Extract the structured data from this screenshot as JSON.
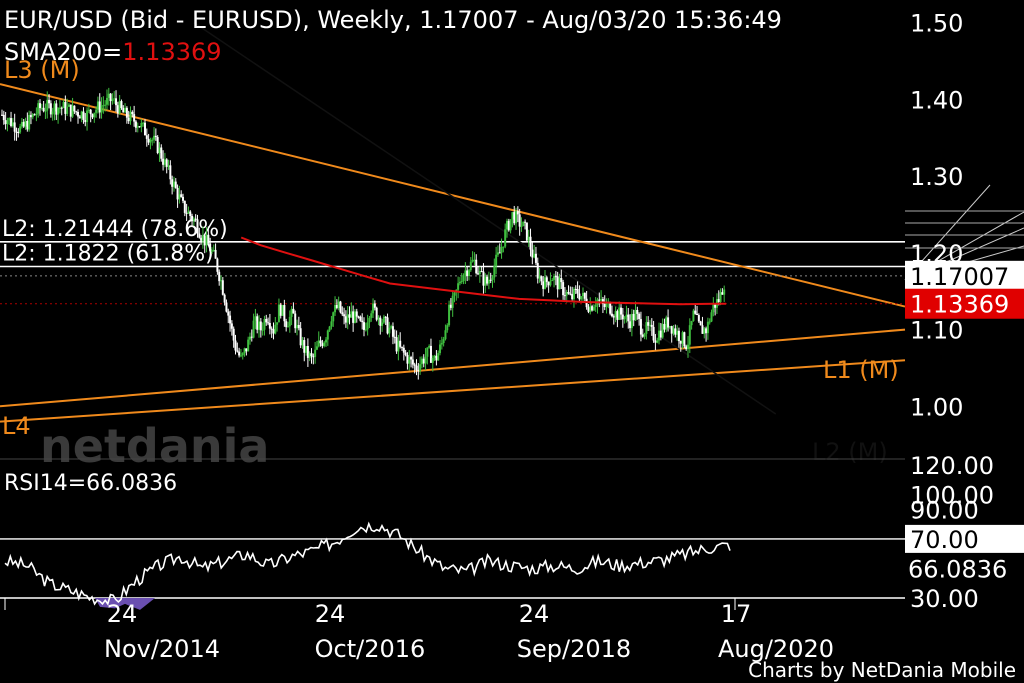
{
  "header": {
    "title": "EUR/USD (Bid - EURUSD),  Weekly, 1.17007 - Aug/03/20 15:36:49",
    "sma_label": "SMA200=",
    "sma_value": "1.13369"
  },
  "watermark": "netdania",
  "footer": "Charts by NetDania Mobile",
  "colors": {
    "background": "#000000",
    "candle_up": "#3fbf3f",
    "candle_down": "#ffffff",
    "sma": "#e01010",
    "trendline": "#f08a1c",
    "fib": "#ffffff",
    "diag": "#1a1a1a",
    "rsi": "#ffffff",
    "rsi_low_fill": "#6a4fb0",
    "price_badge_last": "#ffffff",
    "price_badge_sma": "#e00000"
  },
  "chart_data": [
    {
      "type": "candlestick",
      "symbol": "EUR/USD",
      "interval": "Weekly",
      "ylim": [
        0.96,
        1.51
      ],
      "y_ticks": [
        "1.50",
        "1.40",
        "1.30",
        "1.20",
        "1.10",
        "1.00"
      ],
      "x_ticks": [
        {
          "day": "24",
          "month": "Nov/2014"
        },
        {
          "day": "24",
          "month": "Oct/2016"
        },
        {
          "day": "24",
          "month": "Sep/2018"
        },
        {
          "day": "17",
          "month": "Aug/2020"
        }
      ],
      "last_price": "1.17007",
      "sma200": "1.13369",
      "close_path": [
        [
          0,
          1.38
        ],
        [
          3,
          1.36
        ],
        [
          6,
          1.39
        ],
        [
          9,
          1.39
        ],
        [
          11,
          1.385
        ],
        [
          13,
          1.38
        ],
        [
          15,
          1.39
        ],
        [
          17,
          1.4
        ],
        [
          19,
          1.38
        ],
        [
          21,
          1.37
        ],
        [
          24,
          1.34
        ],
        [
          26,
          1.3
        ],
        [
          28,
          1.26
        ],
        [
          30,
          1.24
        ],
        [
          31,
          1.22
        ],
        [
          32,
          1.21
        ],
        [
          33,
          1.19
        ],
        [
          34,
          1.16
        ],
        [
          35,
          1.12
        ],
        [
          36,
          1.08
        ],
        [
          37,
          1.06
        ],
        [
          38,
          1.08
        ],
        [
          39,
          1.11
        ],
        [
          40,
          1.1
        ],
        [
          41,
          1.12
        ],
        [
          42,
          1.1
        ],
        [
          43,
          1.13
        ],
        [
          44,
          1.11
        ],
        [
          45,
          1.12
        ],
        [
          46,
          1.09
        ],
        [
          47,
          1.07
        ],
        [
          48,
          1.06
        ],
        [
          49,
          1.08
        ],
        [
          50,
          1.09
        ],
        [
          51,
          1.12
        ],
        [
          52,
          1.13
        ],
        [
          53,
          1.11
        ],
        [
          54,
          1.12
        ],
        [
          55,
          1.11
        ],
        [
          56,
          1.1
        ],
        [
          57,
          1.13
        ],
        [
          58,
          1.12
        ],
        [
          59,
          1.11
        ],
        [
          60,
          1.1
        ],
        [
          61,
          1.08
        ],
        [
          62,
          1.07
        ],
        [
          63,
          1.06
        ],
        [
          64,
          1.05
        ],
        [
          65,
          1.06
        ],
        [
          66,
          1.07
        ],
        [
          67,
          1.06
        ],
        [
          68,
          1.08
        ],
        [
          69,
          1.12
        ],
        [
          70,
          1.14
        ],
        [
          71,
          1.17
        ],
        [
          72,
          1.18
        ],
        [
          73,
          1.19
        ],
        [
          74,
          1.17
        ],
        [
          75,
          1.16
        ],
        [
          76,
          1.18
        ],
        [
          77,
          1.2
        ],
        [
          78,
          1.23
        ],
        [
          79,
          1.25
        ],
        [
          80,
          1.24
        ],
        [
          81,
          1.23
        ],
        [
          82,
          1.2
        ],
        [
          83,
          1.17
        ],
        [
          84,
          1.16
        ],
        [
          85,
          1.17
        ],
        [
          86,
          1.16
        ],
        [
          87,
          1.15
        ],
        [
          88,
          1.14
        ],
        [
          89,
          1.15
        ],
        [
          90,
          1.14
        ],
        [
          91,
          1.13
        ],
        [
          92,
          1.14
        ],
        [
          93,
          1.13
        ],
        [
          94,
          1.13
        ],
        [
          95,
          1.12
        ],
        [
          96,
          1.12
        ],
        [
          97,
          1.11
        ],
        [
          98,
          1.12
        ],
        [
          99,
          1.1
        ],
        [
          100,
          1.1
        ],
        [
          101,
          1.09
        ],
        [
          102,
          1.1
        ],
        [
          103,
          1.11
        ],
        [
          104,
          1.1
        ],
        [
          105,
          1.09
        ],
        [
          106,
          1.08
        ],
        [
          107,
          1.12
        ],
        [
          108,
          1.1
        ],
        [
          109,
          1.1
        ],
        [
          110,
          1.13
        ],
        [
          111,
          1.14
        ],
        [
          112,
          1.17
        ]
      ],
      "sma_path": [
        [
          37,
          1.22
        ],
        [
          40,
          1.21
        ],
        [
          44,
          1.2
        ],
        [
          48,
          1.19
        ],
        [
          52,
          1.18
        ],
        [
          56,
          1.17
        ],
        [
          60,
          1.16
        ],
        [
          65,
          1.155
        ],
        [
          70,
          1.15
        ],
        [
          75,
          1.145
        ],
        [
          80,
          1.14
        ],
        [
          85,
          1.138
        ],
        [
          90,
          1.136
        ],
        [
          95,
          1.135
        ],
        [
          100,
          1.134
        ],
        [
          105,
          1.133
        ],
        [
          110,
          1.1337
        ],
        [
          112,
          1.1337
        ]
      ],
      "horizontal_levels": [
        {
          "label": "L2: 1.21444 (78.6%)",
          "value": 1.21444
        },
        {
          "label": "L2: 1.1822 (61.8%)",
          "value": 1.1822
        }
      ],
      "trendlines": [
        {
          "label": "L3 (M)",
          "from": [
            0,
            1.42
          ],
          "to": [
            140,
            1.13
          ]
        },
        {
          "label": "L1 (M)",
          "from": [
            0,
            1.0
          ],
          "to": [
            140,
            1.1
          ]
        },
        {
          "label": "L4",
          "from": [
            0,
            0.98
          ],
          "to": [
            140,
            1.06
          ]
        },
        {
          "label": "L2 (M)",
          "from": [
            30,
            1.5
          ],
          "to": [
            120,
            0.99
          ]
        }
      ],
      "gann_fan_label": ""
    },
    {
      "type": "line",
      "name": "RSI14",
      "label": "RSI14=",
      "value": "66.0836",
      "ylim": [
        30,
        120
      ],
      "y_ticks": [
        "120.00",
        "100.00",
        "90.00",
        "70.00",
        "30.00"
      ],
      "current_label": "66.0836",
      "levels": [
        70,
        30
      ],
      "path": [
        [
          0,
          55
        ],
        [
          5,
          52
        ],
        [
          10,
          40
        ],
        [
          15,
          35
        ],
        [
          20,
          30
        ],
        [
          25,
          28
        ],
        [
          30,
          42
        ],
        [
          35,
          52
        ],
        [
          40,
          58
        ],
        [
          45,
          50
        ],
        [
          50,
          55
        ],
        [
          55,
          60
        ],
        [
          60,
          52
        ],
        [
          65,
          58
        ],
        [
          70,
          62
        ],
        [
          75,
          68
        ],
        [
          80,
          78
        ],
        [
          85,
          80
        ],
        [
          90,
          72
        ],
        [
          95,
          60
        ],
        [
          100,
          50
        ],
        [
          105,
          48
        ],
        [
          110,
          55
        ],
        [
          115,
          52
        ],
        [
          120,
          50
        ],
        [
          125,
          52
        ],
        [
          130,
          50
        ],
        [
          135,
          55
        ],
        [
          140,
          52
        ],
        [
          145,
          54
        ],
        [
          150,
          56
        ],
        [
          155,
          60
        ],
        [
          160,
          64
        ],
        [
          165,
          66
        ]
      ]
    }
  ]
}
